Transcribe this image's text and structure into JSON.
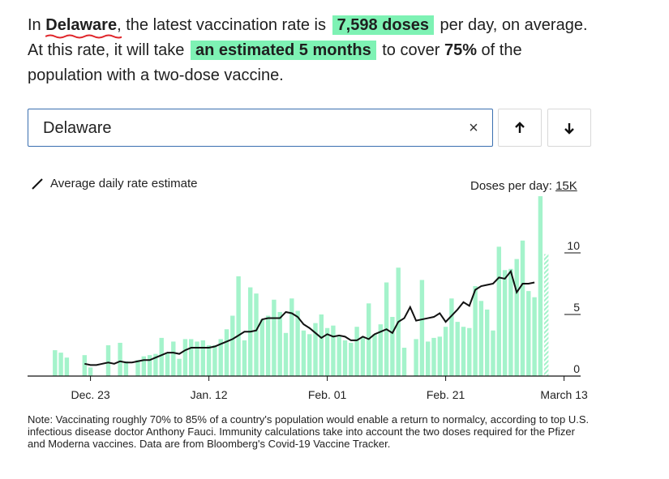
{
  "headline": {
    "prefix": "In ",
    "place": "Delaware",
    "part1": ", the latest vaccination rate is ",
    "rate": "7,598 doses",
    "part2": " per day, on average. At this rate, it will take ",
    "time": "an estimated 5 months",
    "part3": " to cover ",
    "coverage": "75%",
    "part4": " of the population with a two-dose vaccine."
  },
  "search": {
    "value": "Delaware",
    "clear_icon": "×"
  },
  "nav": {
    "up_icon": "arrow-up-icon",
    "down_icon": "arrow-down-icon"
  },
  "colors": {
    "bar": "#a4f3cb",
    "bar_latest": "#a4f3cb",
    "line": "#111111",
    "highlight": "#7ef2b4",
    "underline": "#e0262b",
    "search_border": "#3a6fb0"
  },
  "chart_data": {
    "type": "bar",
    "legend": "Average daily rate estimate",
    "ytitle": "Doses per day:",
    "ymax_label": "15K",
    "yticks": [
      {
        "value": 0,
        "label": "0"
      },
      {
        "value": 5000,
        "label": "5"
      },
      {
        "value": 10000,
        "label": "10"
      }
    ],
    "ylim": [
      0,
      15000
    ],
    "xticks": [
      {
        "index": 2,
        "label": "Dec. 23"
      },
      {
        "index": 22,
        "label": "Jan. 12"
      },
      {
        "index": 42,
        "label": "Feb. 01"
      },
      {
        "index": 62,
        "label": "Feb. 21"
      },
      {
        "index": 82,
        "label": "March 13"
      }
    ],
    "start_index": -4,
    "bars": [
      2100,
      1900,
      1500,
      0,
      0,
      1700,
      700,
      0,
      0,
      2500,
      0,
      2700,
      1200,
      0,
      1300,
      1600,
      1700,
      1800,
      3100,
      1900,
      2800,
      1400,
      3000,
      3000,
      2800,
      2900,
      2500,
      2500,
      3000,
      3800,
      4900,
      8100,
      2900,
      7200,
      6700,
      4600,
      4900,
      6200,
      5200,
      3500,
      6300,
      5300,
      3700,
      3400,
      4300,
      5000,
      3900,
      4100,
      3200,
      2900,
      2700,
      4000,
      3200,
      5900,
      3400,
      4200,
      7600,
      4800,
      8800,
      2300,
      0,
      3000,
      7800,
      2800,
      3100,
      3200,
      4000,
      6300,
      4400,
      4000,
      3900,
      7300,
      6100,
      5400,
      3700,
      10500,
      8600,
      8700,
      9500,
      11000,
      6900,
      6400,
      14600,
      9900
    ],
    "line": {
      "start_index": 1,
      "values": [
        1000,
        900,
        900,
        1000,
        1100,
        1000,
        1200,
        1100,
        1100,
        1200,
        1300,
        1300,
        1500,
        1700,
        1900,
        1900,
        1800,
        2100,
        2300,
        2300,
        2300,
        2300,
        2400,
        2600,
        2800,
        3000,
        3300,
        3600,
        3600,
        3700,
        4600,
        4700,
        4700,
        4700,
        5200,
        5100,
        4800,
        4200,
        3900,
        3500,
        3100,
        3400,
        3200,
        3300,
        3200,
        2900,
        2900,
        3200,
        3000,
        3400,
        3600,
        3800,
        3500,
        4400,
        4700,
        5600,
        4500,
        4600,
        4700,
        4800,
        5100,
        4400,
        4900,
        5400,
        6000,
        5700,
        7000,
        7300,
        7400,
        7500,
        8000,
        7900,
        8500,
        6800,
        7500,
        7500,
        7600
      ]
    }
  },
  "note": "Note: Vaccinating roughly 70% to 85% of a country's population would enable a return to normalcy, according to top U.S. infectious disease doctor Anthony Fauci. Immunity calculations take into account the two doses required for the Pfizer and Moderna vaccines. Data are from Bloomberg's Covid-19 Vaccine Tracker."
}
